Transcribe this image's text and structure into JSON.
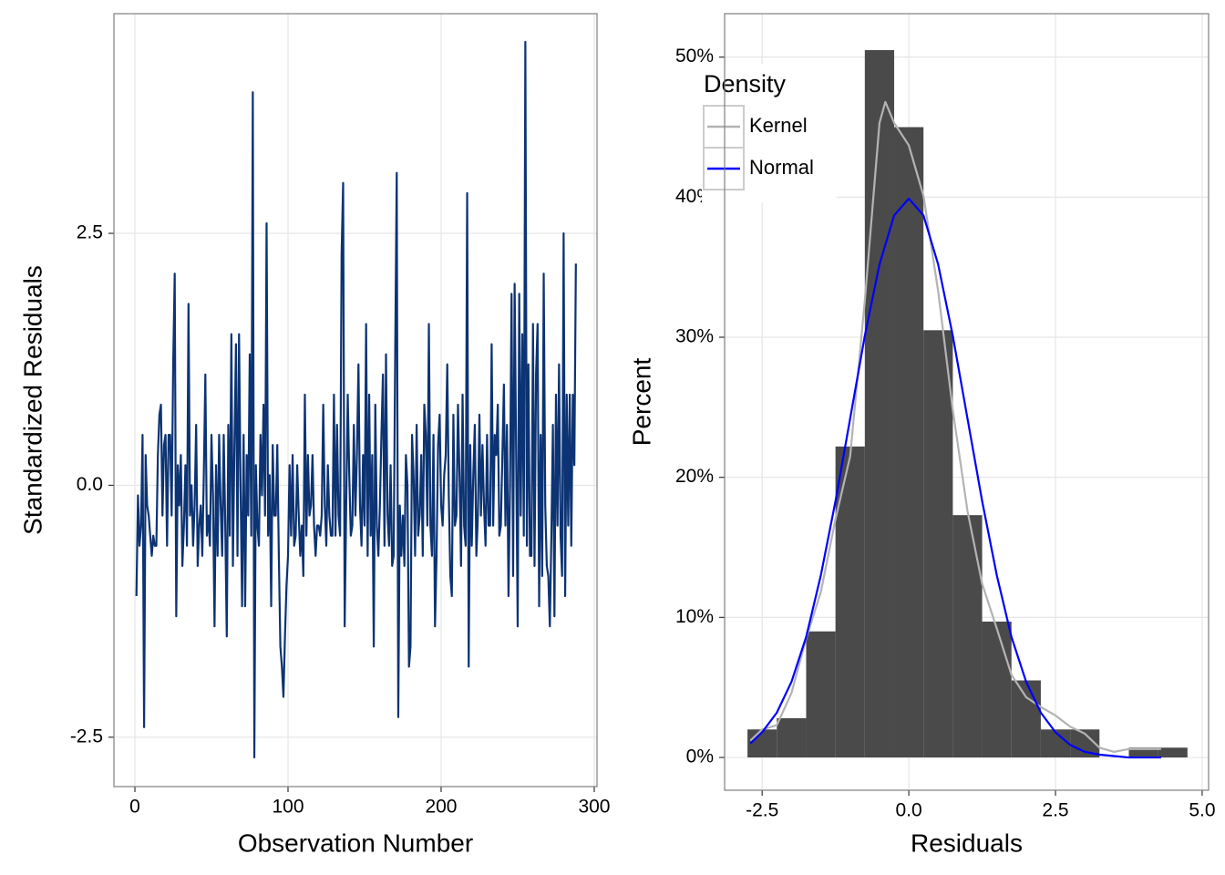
{
  "chart_data": [
    {
      "type": "line",
      "x_label": "Observation Number",
      "y_label": "Standardized Residuals",
      "color": "#0c3373",
      "grid": true,
      "xlim": [
        -13.7,
        301.8
      ],
      "xticks": [
        0,
        100,
        200,
        300
      ],
      "ylim": [
        -2.99,
        4.68
      ],
      "yticks": [
        -2.5,
        {
          "value": 0,
          "label": "0.0"
        },
        2.5
      ],
      "x": [
        1,
        2,
        3,
        4,
        5,
        6,
        7,
        8,
        9,
        10,
        11,
        12,
        13,
        14,
        15,
        16,
        17,
        18,
        19,
        20,
        21,
        22,
        23,
        24,
        25,
        26,
        27,
        28,
        29,
        30,
        31,
        32,
        33,
        34,
        35,
        36,
        37,
        38,
        39,
        40,
        41,
        42,
        43,
        44,
        45,
        46,
        47,
        48,
        49,
        50,
        51,
        52,
        53,
        54,
        55,
        56,
        57,
        58,
        59,
        60,
        61,
        62,
        63,
        64,
        65,
        66,
        67,
        68,
        69,
        70,
        71,
        72,
        73,
        74,
        75,
        76,
        77,
        78,
        79,
        80,
        81,
        82,
        83,
        84,
        85,
        86,
        87,
        88,
        89,
        90,
        91,
        92,
        93,
        94,
        95,
        96,
        97,
        98,
        99,
        100,
        101,
        102,
        103,
        104,
        105,
        106,
        107,
        108,
        109,
        110,
        111,
        112,
        113,
        114,
        115,
        116,
        117,
        118,
        119,
        120,
        121,
        122,
        123,
        124,
        125,
        126,
        127,
        128,
        129,
        130,
        131,
        132,
        133,
        134,
        135,
        136,
        137,
        138,
        139,
        140,
        141,
        142,
        143,
        144,
        145,
        146,
        147,
        148,
        149,
        150,
        151,
        152,
        153,
        154,
        155,
        156,
        157,
        158,
        159,
        160,
        161,
        162,
        163,
        164,
        165,
        166,
        167,
        168,
        169,
        170,
        171,
        172,
        173,
        174,
        175,
        176,
        177,
        178,
        179,
        180,
        181,
        182,
        183,
        184,
        185,
        186,
        187,
        188,
        189,
        190,
        191,
        192,
        193,
        194,
        195,
        196,
        197,
        198,
        199,
        200,
        201,
        202,
        203,
        204,
        205,
        206,
        207,
        208,
        209,
        210,
        211,
        212,
        213,
        214,
        215,
        216,
        217,
        218,
        219,
        220,
        221,
        222,
        223,
        224,
        225,
        226,
        227,
        228,
        229,
        230,
        231,
        232,
        233,
        234,
        235,
        236,
        237,
        238,
        239,
        240,
        241,
        242,
        243,
        244,
        245,
        246,
        247,
        248,
        249,
        250,
        251,
        252,
        253,
        254,
        255,
        256,
        257,
        258,
        259,
        260,
        261,
        262,
        263,
        264,
        265,
        266,
        267,
        268,
        269,
        270,
        271,
        272,
        273,
        274,
        275,
        276,
        277,
        278,
        279,
        280,
        281,
        282,
        283,
        284,
        285,
        286,
        287,
        288
      ],
      "values": [
        -1.1,
        -0.1,
        -0.6,
        -0.4,
        0.5,
        -2.4,
        0.3,
        -0.2,
        -0.3,
        -0.5,
        -0.7,
        -0.5,
        -0.6,
        -0.6,
        0.3,
        0.7,
        0.8,
        -0.3,
        0.4,
        0.5,
        -0.6,
        0.5,
        0.5,
        -0.3,
        1.2,
        2.1,
        -1.3,
        0.2,
        -0.2,
        0.3,
        -0.8,
        -0.4,
        0.2,
        -0.6,
        1.8,
        -0.3,
        0.0,
        -0.6,
        -0.2,
        0.6,
        -0.8,
        -0.4,
        -0.2,
        -0.7,
        0.1,
        1.1,
        -0.5,
        -0.3,
        -0.6,
        0.5,
        -0.1,
        -1.4,
        0.2,
        -0.7,
        0.5,
        -0.2,
        -0.7,
        0.5,
        -0.4,
        -1.5,
        0.6,
        -0.5,
        1.5,
        -0.8,
        0.4,
        1.4,
        -0.7,
        1.5,
        0.0,
        -1.2,
        0.5,
        -1.2,
        0.3,
        -0.3,
        1.3,
        -0.5,
        3.9,
        -2.7,
        0.2,
        -0.4,
        -0.6,
        0.5,
        -0.1,
        0.8,
        -0.3,
        2.6,
        -0.5,
        0.1,
        -1.2,
        0.4,
        -0.3,
        -0.3,
        0.4,
        -0.7,
        -1.6,
        -1.8,
        -2.1,
        -1.5,
        -1.0,
        -0.7,
        0.2,
        -0.5,
        0.3,
        -0.6,
        -0.5,
        0.2,
        -0.3,
        -0.7,
        -0.4,
        -0.9,
        0.9,
        -0.5,
        0.3,
        -0.3,
        -0.2,
        0.3,
        -0.4,
        -0.7,
        -0.4,
        -0.4,
        -0.5,
        -0.3,
        0.8,
        -0.2,
        -0.6,
        0.2,
        -0.3,
        -0.5,
        -0.5,
        0.9,
        -0.5,
        0.6,
        -0.3,
        -0.5,
        2.3,
        3.0,
        -1.4,
        -0.2,
        0.9,
        0.1,
        -0.5,
        -0.4,
        0.6,
        -0.3,
        0.3,
        1.2,
        -0.2,
        -0.6,
        0.3,
        -0.4,
        1.6,
        -0.7,
        0.9,
        -0.5,
        0.3,
        -1.6,
        0.8,
        -0.4,
        -0.7,
        -0.2,
        0.5,
        1.1,
        -0.6,
        1.3,
        -0.3,
        -0.6,
        0.2,
        -0.8,
        -0.7,
        1.3,
        3.1,
        -2.3,
        -0.2,
        -0.7,
        -0.3,
        -0.8,
        0.3,
        0.0,
        -1.8,
        -1.6,
        0.5,
        0.1,
        -0.7,
        0.6,
        -0.5,
        -0.3,
        0.3,
        -0.7,
        0.8,
        0.5,
        -0.4,
        1.6,
        -0.4,
        -0.7,
        0.5,
        -1.4,
        -0.7,
        0.4,
        0.7,
        -0.2,
        -0.4,
        0.1,
        0.3,
        1.2,
        -0.1,
        -0.9,
        -1.1,
        0.7,
        -0.4,
        -0.3,
        0.8,
        0.1,
        -0.8,
        0.9,
        -0.4,
        -0.6,
        2.9,
        -1.8,
        0.4,
        -0.6,
        0.1,
        0.6,
        -0.7,
        -0.3,
        0.7,
        -0.3,
        0.4,
        -0.2,
        -0.6,
        0.5,
        -0.4,
        -0.4,
        1.4,
        -0.4,
        0.5,
        0.3,
        0.8,
        -0.5,
        -0.4,
        0.3,
        1.0,
        -0.4,
        0.6,
        -1.1,
        0.0,
        1.9,
        -0.9,
        2.0,
        0.3,
        -1.4,
        1.9,
        -0.3,
        1.5,
        -0.5,
        4.4,
        -0.6,
        1.2,
        -0.7,
        -0.7,
        1.6,
        -0.8,
        1.1,
        1.6,
        -1.2,
        0.5,
        -0.9,
        2.1,
        -0.2,
        -0.8,
        -0.9,
        -1.4,
        -0.5,
        0.6,
        -1.3,
        0.9,
        -0.4,
        1.2,
        -0.5,
        -0.9,
        2.5,
        -1.1,
        0.9,
        -0.4,
        0.9,
        -0.6,
        0.9,
        0.2,
        2.2
      ]
    },
    {
      "type": "histogram",
      "x_label": "Residuals",
      "y_label": "Percent",
      "color": "#4a4a4a",
      "grid": true,
      "xlim": [
        -3.14,
        5.11
      ],
      "xticks": [
        -2.5,
        {
          "value": 0,
          "label": "0.0"
        },
        2.5,
        {
          "value": 5,
          "label": "5.0"
        }
      ],
      "ylim": [
        -2.34,
        53.1
      ],
      "yticks": [
        {
          "value": 0,
          "label": "0%"
        },
        {
          "value": 10,
          "label": "10%"
        },
        {
          "value": 20,
          "label": "20%"
        },
        {
          "value": 30,
          "label": "30%"
        },
        {
          "value": 40,
          "label": "40%"
        },
        {
          "value": 50,
          "label": "50%"
        }
      ],
      "bins": [
        -2.75,
        -2.25,
        -1.75,
        -1.25,
        -0.75,
        -0.25,
        0.25,
        0.75,
        1.25,
        1.75,
        2.25,
        2.75,
        3.25,
        3.75,
        4.25,
        4.75
      ],
      "values": [
        2.0,
        2.8,
        9.0,
        22.2,
        50.5,
        45.0,
        30.5,
        17.3,
        9.7,
        5.5,
        2.0,
        2.0,
        0,
        0.7,
        0.7
      ],
      "legend_title": "Density",
      "legend": "top-left",
      "series": [
        {
          "name": "Kernel",
          "color": "#b3b3b3",
          "x": [
            -2.7,
            -2.5,
            -2.25,
            -2.0,
            -1.75,
            -1.5,
            -1.25,
            -1.0,
            -0.75,
            -0.5,
            -0.4,
            -0.25,
            0,
            0.25,
            0.5,
            0.75,
            1.0,
            1.25,
            1.5,
            1.75,
            2.0,
            2.25,
            2.5,
            2.75,
            3.0,
            3.25,
            3.5,
            3.75,
            4.0,
            4.3
          ],
          "values": [
            1.2,
            2.0,
            2.3,
            4.6,
            8.5,
            11.8,
            17.0,
            21.5,
            32.6,
            45.3,
            46.8,
            45.3,
            43.7,
            40.1,
            33.3,
            24.8,
            17.6,
            12.4,
            9.2,
            5.9,
            4.3,
            3.6,
            3.0,
            2.2,
            1.7,
            0.7,
            0.4,
            0.6,
            0.6,
            0.6
          ]
        },
        {
          "name": "Normal",
          "color": "#0000ff",
          "x": [
            -2.7,
            -2.5,
            -2.25,
            -2.0,
            -1.75,
            -1.5,
            -1.25,
            -1.0,
            -0.75,
            -0.5,
            -0.25,
            0,
            0.25,
            0.5,
            0.75,
            1.0,
            1.25,
            1.5,
            1.75,
            2.0,
            2.25,
            2.5,
            2.75,
            3.0,
            3.25,
            3.5,
            3.75,
            4.0,
            4.3
          ],
          "values": [
            1.0,
            1.8,
            3.2,
            5.4,
            8.6,
            13.0,
            18.3,
            24.2,
            30.1,
            35.2,
            38.7,
            39.9,
            38.7,
            35.2,
            30.1,
            24.2,
            18.3,
            13.0,
            8.6,
            5.4,
            3.2,
            1.8,
            0.9,
            0.4,
            0.2,
            0.1,
            0.0,
            0.0,
            0.0
          ]
        }
      ]
    }
  ]
}
